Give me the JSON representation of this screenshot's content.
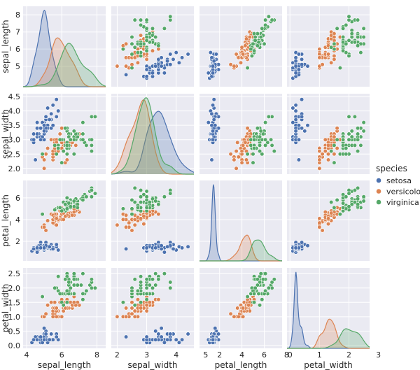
{
  "chart_data": {
    "type": "scatter",
    "subtype": "pairplot",
    "title": "",
    "variables": [
      "sepal_length",
      "sepal_width",
      "petal_length",
      "petal_width"
    ],
    "axis_labels": [
      "sepal_length",
      "sepal_width",
      "petal_length",
      "petal_width"
    ],
    "ranges": {
      "sepal_length": [
        3.8,
        8.5
      ],
      "sepal_width": [
        1.8,
        4.6
      ],
      "petal_length": [
        0.2,
        7.6
      ],
      "petal_width": [
        -0.1,
        2.7
      ]
    },
    "ticks": {
      "sepal_length": [
        4,
        5,
        6,
        7,
        8
      ],
      "sepal_width": [
        2.0,
        2.5,
        3.0,
        3.5,
        4.0,
        4.5
      ],
      "petal_length": [
        2,
        4,
        6,
        8
      ],
      "petal_width": [
        0.0,
        0.5,
        1.0,
        1.5,
        2.0,
        2.5
      ]
    },
    "x_ticks": {
      "sepal_length": [
        4,
        6,
        8
      ],
      "sepal_width": [
        2,
        3,
        4,
        5
      ],
      "petal_length": [
        2,
        4,
        6,
        8
      ],
      "petal_width": [
        0,
        1,
        2,
        3
      ]
    },
    "y_ticks": {
      "sepal_length": [
        5,
        6,
        7,
        8
      ],
      "sepal_width": [
        2.0,
        2.5,
        3.0,
        3.5,
        4.0,
        4.5
      ],
      "petal_length": [
        2,
        4,
        6
      ],
      "petal_width": [
        0.0,
        0.5,
        1.0,
        1.5,
        2.0,
        2.5
      ]
    },
    "y_tick_labels": {
      "sepal_length": [
        "5",
        "6",
        "7",
        "8"
      ],
      "sepal_width": [
        "2.0",
        "2.5",
        "3.0",
        "3.5",
        "4.0",
        "4.5"
      ],
      "petal_length": [
        "2",
        "4",
        "6"
      ],
      "petal_width": [
        "0.0",
        "0.5",
        "1.0",
        "1.5",
        "2.0",
        "2.5"
      ]
    },
    "x_tick_labels": {
      "sepal_length": [
        "4",
        "6",
        "8"
      ],
      "sepal_width": [
        "2",
        "3",
        "4",
        "5"
      ],
      "petal_length": [
        "2",
        "4",
        "6",
        "8"
      ],
      "petal_width": [
        "0",
        "1",
        "2",
        "3"
      ]
    },
    "diagonal": "kde",
    "legend": {
      "title": "species",
      "position": "right",
      "entries": [
        "setosa",
        "versicolor",
        "virginica"
      ]
    },
    "series": [
      {
        "name": "setosa",
        "color": "#4c72b0",
        "sepal_length": [
          5.1,
          4.9,
          4.7,
          4.6,
          5.0,
          5.4,
          4.6,
          5.0,
          4.4,
          4.9,
          5.4,
          4.8,
          4.8,
          4.3,
          5.8,
          5.7,
          5.4,
          5.1,
          5.7,
          5.1,
          5.4,
          5.1,
          4.6,
          5.1,
          4.8,
          5.0,
          5.0,
          5.2,
          5.2,
          4.7,
          4.8,
          5.4,
          5.2,
          5.5,
          4.9,
          5.0,
          5.5,
          4.9,
          4.4,
          5.1,
          5.0,
          4.5,
          4.4,
          5.0,
          5.1,
          4.8,
          5.1,
          4.6,
          5.3,
          5.0
        ],
        "sepal_width": [
          3.5,
          3.0,
          3.2,
          3.1,
          3.6,
          3.9,
          3.4,
          3.4,
          2.9,
          3.1,
          3.7,
          3.4,
          3.0,
          3.0,
          4.0,
          4.4,
          3.9,
          3.5,
          3.8,
          3.8,
          3.4,
          3.7,
          3.6,
          3.3,
          3.4,
          3.0,
          3.4,
          3.5,
          3.4,
          3.2,
          3.1,
          3.4,
          4.1,
          4.2,
          3.1,
          3.2,
          3.5,
          3.6,
          3.0,
          3.4,
          3.5,
          2.3,
          3.2,
          3.5,
          3.8,
          3.0,
          3.8,
          3.2,
          3.7,
          3.3
        ],
        "petal_length": [
          1.4,
          1.4,
          1.3,
          1.5,
          1.4,
          1.7,
          1.4,
          1.5,
          1.4,
          1.5,
          1.5,
          1.6,
          1.4,
          1.1,
          1.2,
          1.5,
          1.3,
          1.4,
          1.7,
          1.5,
          1.7,
          1.5,
          1.0,
          1.7,
          1.9,
          1.6,
          1.6,
          1.5,
          1.4,
          1.6,
          1.6,
          1.5,
          1.5,
          1.4,
          1.5,
          1.2,
          1.3,
          1.4,
          1.3,
          1.5,
          1.3,
          1.3,
          1.3,
          1.6,
          1.9,
          1.4,
          1.6,
          1.4,
          1.5,
          1.4
        ],
        "petal_width": [
          0.2,
          0.2,
          0.2,
          0.2,
          0.2,
          0.4,
          0.3,
          0.2,
          0.2,
          0.1,
          0.2,
          0.2,
          0.1,
          0.1,
          0.2,
          0.4,
          0.4,
          0.3,
          0.3,
          0.3,
          0.2,
          0.4,
          0.2,
          0.5,
          0.2,
          0.2,
          0.4,
          0.2,
          0.2,
          0.2,
          0.2,
          0.4,
          0.1,
          0.2,
          0.2,
          0.2,
          0.2,
          0.1,
          0.2,
          0.2,
          0.3,
          0.3,
          0.2,
          0.6,
          0.4,
          0.3,
          0.2,
          0.2,
          0.2,
          0.2
        ]
      },
      {
        "name": "versicolor",
        "color": "#dd8452",
        "sepal_length": [
          7.0,
          6.4,
          6.9,
          5.5,
          6.5,
          5.7,
          6.3,
          4.9,
          6.6,
          5.2,
          5.0,
          5.9,
          6.0,
          6.1,
          5.6,
          6.7,
          5.6,
          5.8,
          6.2,
          5.6,
          5.9,
          6.1,
          6.3,
          6.1,
          6.4,
          6.6,
          6.8,
          6.7,
          6.0,
          5.7,
          5.5,
          5.5,
          5.8,
          6.0,
          5.4,
          6.0,
          6.7,
          6.3,
          5.6,
          5.5,
          5.5,
          6.1,
          5.8,
          5.0,
          5.6,
          5.7,
          5.7,
          6.2,
          5.1,
          5.7
        ],
        "sepal_width": [
          3.2,
          3.2,
          3.1,
          2.3,
          2.8,
          2.8,
          3.3,
          2.4,
          2.9,
          2.7,
          2.0,
          3.0,
          2.2,
          2.9,
          2.9,
          3.1,
          3.0,
          2.7,
          2.2,
          2.5,
          3.2,
          2.8,
          2.5,
          2.8,
          2.9,
          3.0,
          2.8,
          3.0,
          2.9,
          2.6,
          2.4,
          2.4,
          2.7,
          2.7,
          3.0,
          3.4,
          3.1,
          2.3,
          3.0,
          2.5,
          2.6,
          3.0,
          2.6,
          2.3,
          2.7,
          3.0,
          2.9,
          2.9,
          2.5,
          2.8
        ],
        "petal_length": [
          4.7,
          4.5,
          4.9,
          4.0,
          4.6,
          4.5,
          4.7,
          3.3,
          4.6,
          3.9,
          3.5,
          4.2,
          4.0,
          4.7,
          3.6,
          4.4,
          4.5,
          4.1,
          4.5,
          3.9,
          4.8,
          4.0,
          4.9,
          4.7,
          4.3,
          4.4,
          4.8,
          5.0,
          4.5,
          3.5,
          3.8,
          3.7,
          3.9,
          5.1,
          4.5,
          4.5,
          4.7,
          4.4,
          4.1,
          4.0,
          4.4,
          4.6,
          4.0,
          3.3,
          4.2,
          4.2,
          4.2,
          4.3,
          3.0,
          4.1
        ],
        "petal_width": [
          1.4,
          1.5,
          1.5,
          1.3,
          1.5,
          1.3,
          1.6,
          1.0,
          1.3,
          1.4,
          1.0,
          1.5,
          1.0,
          1.4,
          1.3,
          1.4,
          1.5,
          1.0,
          1.5,
          1.1,
          1.8,
          1.3,
          1.5,
          1.2,
          1.3,
          1.4,
          1.4,
          1.7,
          1.5,
          1.0,
          1.1,
          1.0,
          1.2,
          1.6,
          1.5,
          1.6,
          1.5,
          1.3,
          1.3,
          1.3,
          1.2,
          1.4,
          1.2,
          1.0,
          1.3,
          1.2,
          1.3,
          1.3,
          1.1,
          1.3
        ]
      },
      {
        "name": "virginica",
        "color": "#55a868",
        "sepal_length": [
          6.3,
          5.8,
          7.1,
          6.3,
          6.5,
          7.6,
          4.9,
          7.3,
          6.7,
          7.2,
          6.5,
          6.4,
          6.8,
          5.7,
          5.8,
          6.4,
          6.5,
          7.7,
          7.7,
          6.0,
          6.9,
          5.6,
          7.7,
          6.3,
          6.7,
          7.2,
          6.2,
          6.1,
          6.4,
          7.2,
          7.4,
          7.9,
          6.4,
          6.3,
          6.1,
          7.7,
          6.3,
          6.4,
          6.0,
          6.9,
          6.7,
          6.9,
          5.8,
          6.8,
          6.7,
          6.7,
          6.3,
          6.5,
          6.2,
          5.9
        ],
        "sepal_width": [
          3.3,
          2.7,
          3.0,
          2.9,
          3.0,
          3.0,
          2.5,
          2.9,
          2.5,
          3.6,
          3.2,
          2.7,
          3.0,
          2.5,
          2.8,
          3.2,
          3.0,
          3.8,
          2.6,
          2.2,
          3.2,
          2.8,
          2.8,
          2.7,
          3.3,
          3.2,
          2.8,
          3.0,
          2.8,
          3.0,
          2.8,
          3.8,
          2.8,
          2.8,
          2.6,
          3.0,
          3.4,
          3.1,
          3.0,
          3.1,
          3.1,
          3.1,
          2.7,
          3.2,
          3.3,
          3.0,
          2.5,
          3.0,
          3.4,
          3.0
        ],
        "petal_length": [
          6.0,
          5.1,
          5.9,
          5.6,
          5.8,
          6.6,
          4.5,
          6.3,
          5.8,
          6.1,
          5.1,
          5.3,
          5.5,
          5.0,
          5.1,
          5.3,
          5.5,
          6.7,
          6.9,
          5.0,
          5.7,
          4.9,
          6.7,
          4.9,
          5.7,
          6.0,
          4.8,
          4.9,
          5.6,
          5.8,
          6.1,
          6.4,
          5.6,
          5.1,
          5.6,
          6.1,
          5.6,
          5.5,
          4.8,
          5.4,
          5.6,
          5.1,
          5.1,
          5.9,
          5.7,
          5.2,
          5.0,
          5.2,
          5.4,
          5.1
        ],
        "petal_width": [
          2.5,
          1.9,
          2.1,
          1.8,
          2.2,
          2.1,
          1.7,
          1.8,
          1.8,
          2.5,
          2.0,
          1.9,
          2.1,
          2.0,
          2.4,
          2.3,
          1.8,
          2.2,
          2.3,
          1.5,
          2.3,
          2.0,
          2.0,
          1.8,
          2.1,
          1.8,
          1.8,
          1.8,
          2.1,
          1.6,
          1.9,
          2.0,
          2.2,
          1.5,
          1.4,
          2.3,
          2.4,
          1.8,
          1.8,
          2.1,
          2.4,
          2.3,
          1.9,
          2.3,
          2.5,
          2.3,
          1.9,
          2.0,
          2.3,
          1.8
        ]
      }
    ]
  }
}
